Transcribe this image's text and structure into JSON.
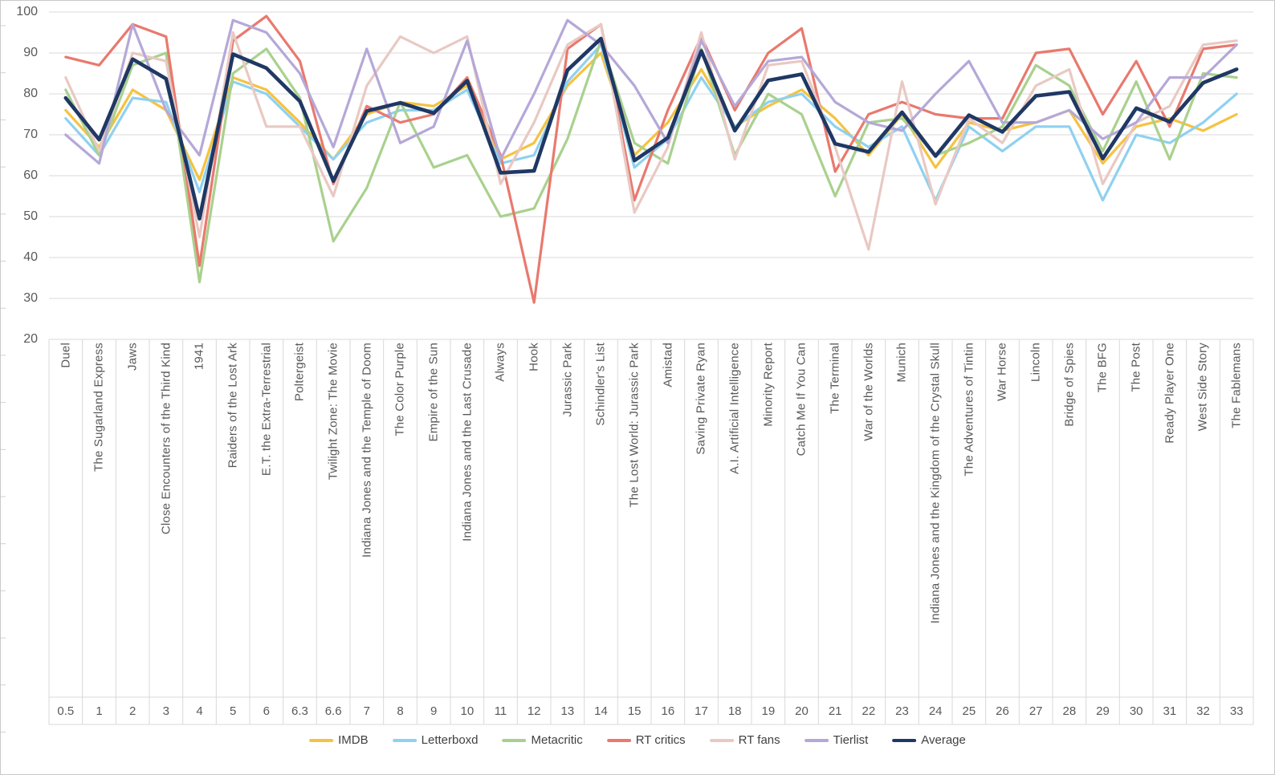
{
  "chart_data": {
    "type": "line",
    "title": "",
    "xlabel": "",
    "ylabel": "",
    "ylim": [
      20,
      100
    ],
    "y_ticks": [
      100,
      90,
      80,
      70,
      60,
      50,
      40,
      30,
      20
    ],
    "grid": "horizontal",
    "legend_position": "bottom",
    "gridline_color": "#D9D9D9",
    "axis_text_color": "#595959",
    "legend_text_color": "#404040",
    "categories": [
      "Duel",
      "The Sugarland Express",
      "Jaws",
      "Close Encounters of the Third Kind",
      "1941",
      "Raiders of the Lost Ark",
      "E.T. the Extra-Terrestrial",
      "Poltergeist",
      "Twilight Zone: The Movie",
      "Indiana Jones and the Temple of Doom",
      "The Color Purple",
      "Empire of the Sun",
      "Indiana Jones and the Last Crusade",
      "Always",
      "Hook",
      "Jurassic Park",
      "Schindler's List",
      "The Lost World: Jurassic Park",
      "Amistad",
      "Saving Private Ryan",
      "A.I. Artificial Intelligence",
      "Minority Report",
      "Catch Me If You Can",
      "The Terminal",
      "War of the Worlds",
      "Munich",
      "Indiana Jones and the Kingdom of the Crystal Skull",
      "The Adventures of Tintin",
      "War Horse",
      "Lincoln",
      "Bridge of Spies",
      "The BFG",
      "The Post",
      "Ready Player One",
      "West Side Story",
      "The Fablemans"
    ],
    "category_numbers": [
      "0.5",
      "1",
      "2",
      "3",
      "4",
      "5",
      "6",
      "6.3",
      "6.6",
      "7",
      "8",
      "9",
      "10",
      "11",
      "12",
      "13",
      "14",
      "15",
      "16",
      "17",
      "18",
      "19",
      "20",
      "21",
      "22",
      "23",
      "24",
      "25",
      "26",
      "27",
      "28",
      "29",
      "30",
      "31",
      "32",
      "33"
    ],
    "series": [
      {
        "name": "IMDB",
        "color": "#F5C242",
        "thick": false,
        "values": [
          76,
          67,
          81,
          76,
          59,
          84,
          81,
          73,
          64,
          75,
          78,
          77,
          82,
          64,
          68,
          82,
          90,
          65,
          73,
          86,
          72,
          77,
          81,
          74,
          65,
          75,
          62,
          73,
          71,
          73,
          76,
          63,
          72,
          74,
          71,
          75
        ]
      },
      {
        "name": "Letterboxd",
        "color": "#8FD1F0",
        "thick": false,
        "values": [
          74,
          65,
          79,
          78,
          56,
          83,
          80,
          72,
          64,
          73,
          76,
          76,
          81,
          63,
          65,
          83,
          92,
          62,
          69,
          84,
          72,
          78,
          80,
          72,
          67,
          72,
          54,
          72,
          66,
          72,
          72,
          54,
          70,
          68,
          73,
          80
        ]
      },
      {
        "name": "Metacritic",
        "color": "#A9D18E",
        "thick": false,
        "values": [
          81,
          65,
          87,
          90,
          34,
          85,
          91,
          79,
          44,
          57,
          78,
          62,
          65,
          50,
          52,
          69,
          93,
          68,
          63,
          91,
          65,
          80,
          75,
          55,
          73,
          74,
          65,
          68,
          72,
          87,
          82,
          66,
          83,
          64,
          85,
          84
        ]
      },
      {
        "name": "RT critics",
        "color": "#E9796E",
        "thick": false,
        "values": [
          89,
          87,
          97,
          94,
          38,
          93,
          99,
          88,
          58,
          77,
          73,
          75,
          84,
          65,
          29,
          91,
          97,
          54,
          76,
          94,
          76,
          90,
          96,
          61,
          75,
          78,
          75,
          74,
          74,
          90,
          91,
          75,
          88,
          72,
          91,
          92
        ]
      },
      {
        "name": "RT fans",
        "color": "#E9C9C3",
        "thick": false,
        "values": [
          84,
          66,
          90,
          88,
          45,
          95,
          72,
          72,
          55,
          82,
          94,
          90,
          94,
          58,
          73,
          92,
          97,
          51,
          67,
          95,
          64,
          87,
          88,
          67,
          42,
          83,
          53,
          74,
          68,
          82,
          86,
          58,
          73,
          77,
          92,
          93
        ]
      },
      {
        "name": "Tierlist",
        "color": "#B5A8D8",
        "thick": false,
        "values": [
          70,
          63,
          97,
          76,
          65,
          98,
          95,
          85,
          67,
          91,
          68,
          72,
          93,
          64,
          80,
          98,
          92,
          82,
          68,
          93,
          77,
          88,
          89,
          78,
          73,
          71,
          80,
          88,
          73,
          73,
          76,
          69,
          73,
          84,
          84,
          92
        ]
      },
      {
        "name": "Average",
        "color": "#1F3864",
        "thick": true,
        "values": [
          79,
          68.8,
          88.5,
          83.7,
          49.5,
          89.7,
          86.3,
          78.2,
          58.7,
          75.8,
          77.8,
          75.3,
          83.2,
          60.7,
          61.2,
          85.8,
          93.5,
          63.7,
          69.3,
          90.5,
          71,
          83.3,
          84.8,
          67.8,
          65.8,
          75.5,
          64.8,
          74.8,
          70.7,
          79.5,
          80.5,
          64.2,
          76.5,
          73.2,
          82.7,
          86
        ]
      }
    ]
  }
}
